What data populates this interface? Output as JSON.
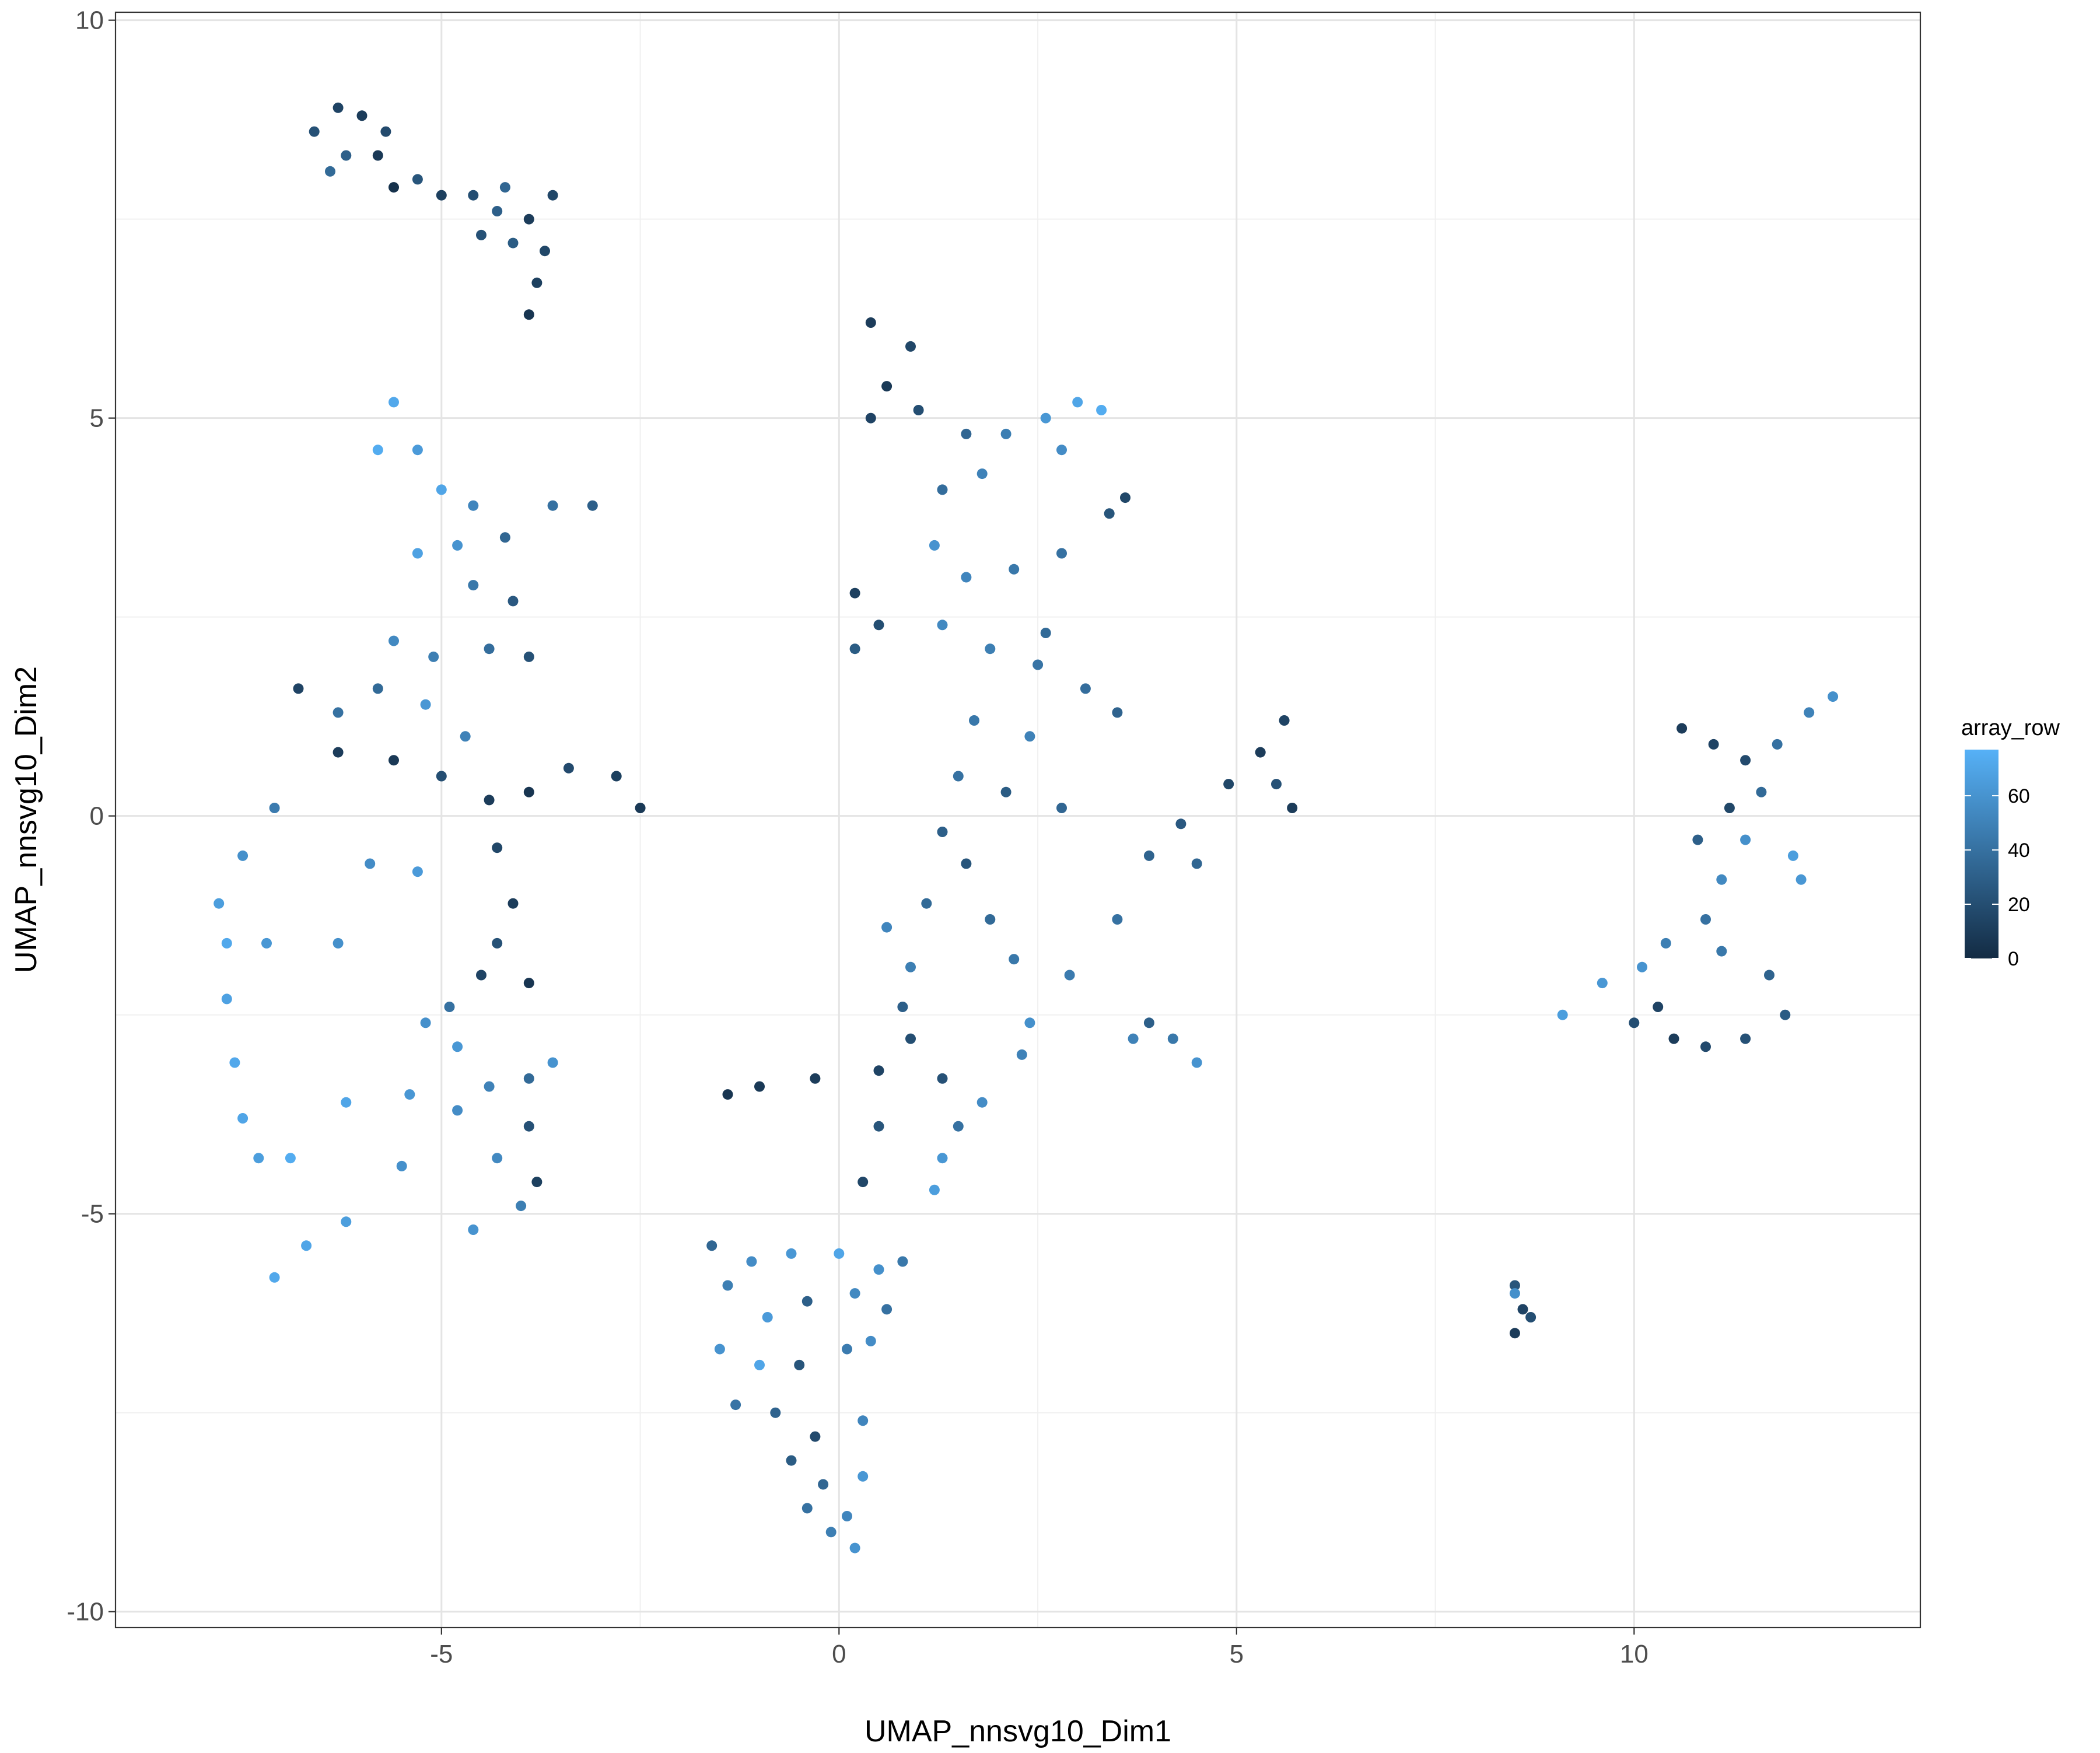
{
  "chart_data": {
    "type": "scatter",
    "title": "",
    "xlabel": "UMAP_nnsvg10_Dim1",
    "ylabel": "UMAP_nnsvg10_Dim2",
    "xlim": [
      -9.1,
      13.6
    ],
    "ylim": [
      -10.2,
      10.1
    ],
    "x_ticks": [
      -5,
      0,
      5,
      10
    ],
    "x_tick_labels": [
      "-5",
      "0",
      "5",
      "10"
    ],
    "y_ticks": [
      -10,
      -5,
      0,
      5,
      10
    ],
    "y_tick_labels": [
      "-10",
      "-5",
      "0",
      "5",
      "10"
    ],
    "grid": true,
    "legend": {
      "position": "right",
      "title": "array_row",
      "type": "colorbar",
      "range": [
        0,
        77
      ],
      "ticks": [
        0,
        20,
        40,
        60
      ],
      "tick_labels": [
        "0",
        "20",
        "40",
        "60"
      ],
      "low_color": "#132B43",
      "high_color": "#56B1F7"
    },
    "series": [
      {
        "color_by": "array_row",
        "points": [
          [
            -6.3,
            8.9,
            14
          ],
          [
            -6.6,
            8.6,
            22
          ],
          [
            -6.0,
            8.8,
            10
          ],
          [
            -5.7,
            8.6,
            18
          ],
          [
            -6.2,
            8.3,
            30
          ],
          [
            -5.8,
            8.3,
            8
          ],
          [
            -5.3,
            8.0,
            24
          ],
          [
            -5.0,
            7.8,
            12
          ],
          [
            -4.6,
            7.8,
            20
          ],
          [
            -4.3,
            7.6,
            30
          ],
          [
            -3.9,
            7.5,
            10
          ],
          [
            -4.2,
            7.9,
            34
          ],
          [
            -3.7,
            7.1,
            16
          ],
          [
            -4.1,
            7.2,
            28
          ],
          [
            -3.8,
            6.7,
            12
          ],
          [
            -3.9,
            6.3,
            6
          ],
          [
            -6.4,
            8.1,
            36
          ],
          [
            -5.6,
            7.9,
            4
          ],
          [
            -4.5,
            7.3,
            22
          ],
          [
            -3.6,
            7.8,
            16
          ],
          [
            -5.6,
            5.2,
            72
          ],
          [
            -5.3,
            4.6,
            64
          ],
          [
            -5.8,
            4.6,
            74
          ],
          [
            -5.0,
            4.1,
            70
          ],
          [
            -4.6,
            3.9,
            52
          ],
          [
            -4.2,
            3.5,
            34
          ],
          [
            -3.6,
            3.9,
            40
          ],
          [
            -3.1,
            3.9,
            30
          ],
          [
            -4.8,
            3.4,
            60
          ],
          [
            -5.3,
            3.3,
            68
          ],
          [
            -4.6,
            2.9,
            44
          ],
          [
            -4.1,
            2.7,
            26
          ],
          [
            -5.6,
            2.2,
            54
          ],
          [
            -5.1,
            2.0,
            48
          ],
          [
            -4.4,
            2.1,
            38
          ],
          [
            -3.9,
            2.0,
            22
          ],
          [
            -6.3,
            1.3,
            40
          ],
          [
            -5.8,
            1.6,
            36
          ],
          [
            -5.2,
            1.4,
            62
          ],
          [
            -4.7,
            1.0,
            50
          ],
          [
            -6.8,
            1.6,
            14
          ],
          [
            -6.3,
            0.8,
            10
          ],
          [
            -5.6,
            0.7,
            8
          ],
          [
            -5.0,
            0.5,
            20
          ],
          [
            -4.4,
            0.2,
            10
          ],
          [
            -3.9,
            0.3,
            6
          ],
          [
            -3.4,
            0.6,
            18
          ],
          [
            -2.8,
            0.5,
            12
          ],
          [
            -2.5,
            0.1,
            8
          ],
          [
            -4.3,
            -0.4,
            16
          ],
          [
            -4.1,
            -1.1,
            10
          ],
          [
            -4.3,
            -1.6,
            22
          ],
          [
            -3.9,
            -2.1,
            6
          ],
          [
            -4.5,
            -2.0,
            14
          ],
          [
            -7.1,
            0.1,
            46
          ],
          [
            -7.5,
            -0.5,
            58
          ],
          [
            -7.8,
            -1.1,
            66
          ],
          [
            -7.7,
            -1.6,
            72
          ],
          [
            -7.2,
            -1.6,
            62
          ],
          [
            -6.3,
            -1.6,
            58
          ],
          [
            -5.9,
            -0.6,
            56
          ],
          [
            -5.3,
            -0.7,
            64
          ],
          [
            -4.9,
            -2.4,
            40
          ],
          [
            -5.2,
            -2.6,
            58
          ],
          [
            -7.7,
            -2.3,
            68
          ],
          [
            -7.6,
            -3.1,
            72
          ],
          [
            -7.5,
            -3.8,
            70
          ],
          [
            -7.3,
            -4.3,
            66
          ],
          [
            -6.9,
            -4.3,
            74
          ],
          [
            -6.2,
            -3.6,
            70
          ],
          [
            -5.4,
            -3.5,
            62
          ],
          [
            -4.8,
            -3.7,
            56
          ],
          [
            -4.4,
            -3.4,
            50
          ],
          [
            -3.9,
            -3.3,
            36
          ],
          [
            -3.9,
            -3.9,
            22
          ],
          [
            -3.8,
            -4.6,
            12
          ],
          [
            -4.3,
            -4.3,
            54
          ],
          [
            -4.6,
            -5.2,
            60
          ],
          [
            -5.5,
            -4.4,
            58
          ],
          [
            -6.2,
            -5.1,
            66
          ],
          [
            -6.7,
            -5.4,
            70
          ],
          [
            -7.1,
            -5.8,
            72
          ],
          [
            -4.0,
            -4.9,
            48
          ],
          [
            -4.8,
            -2.9,
            62
          ],
          [
            -3.6,
            -3.1,
            60
          ],
          [
            0.4,
            6.2,
            10
          ],
          [
            0.9,
            5.9,
            16
          ],
          [
            0.6,
            5.4,
            8
          ],
          [
            0.4,
            5.0,
            14
          ],
          [
            1.0,
            5.1,
            20
          ],
          [
            1.6,
            4.8,
            34
          ],
          [
            2.1,
            4.8,
            48
          ],
          [
            2.6,
            5.0,
            62
          ],
          [
            3.0,
            5.2,
            70
          ],
          [
            3.3,
            5.1,
            74
          ],
          [
            2.8,
            4.6,
            56
          ],
          [
            1.8,
            4.3,
            50
          ],
          [
            1.3,
            4.1,
            38
          ],
          [
            1.2,
            3.4,
            60
          ],
          [
            1.6,
            3.0,
            52
          ],
          [
            2.2,
            3.1,
            44
          ],
          [
            2.8,
            3.3,
            40
          ],
          [
            3.4,
            3.8,
            24
          ],
          [
            3.6,
            4.0,
            16
          ],
          [
            2.6,
            2.3,
            36
          ],
          [
            0.2,
            2.8,
            12
          ],
          [
            0.5,
            2.4,
            20
          ],
          [
            0.2,
            2.1,
            28
          ],
          [
            1.3,
            2.4,
            54
          ],
          [
            1.9,
            2.1,
            48
          ],
          [
            2.5,
            1.9,
            42
          ],
          [
            3.1,
            1.6,
            38
          ],
          [
            3.5,
            1.3,
            32
          ],
          [
            1.7,
            1.2,
            44
          ],
          [
            2.4,
            1.0,
            50
          ],
          [
            1.5,
            0.5,
            40
          ],
          [
            2.1,
            0.3,
            28
          ],
          [
            2.8,
            0.1,
            34
          ],
          [
            1.3,
            -0.2,
            30
          ],
          [
            1.6,
            -0.6,
            24
          ],
          [
            1.1,
            -1.1,
            36
          ],
          [
            0.6,
            -1.4,
            52
          ],
          [
            0.9,
            -1.9,
            48
          ],
          [
            0.8,
            -2.4,
            30
          ],
          [
            0.9,
            -2.8,
            20
          ],
          [
            0.5,
            -3.2,
            14
          ],
          [
            -0.3,
            -3.3,
            10
          ],
          [
            -1.0,
            -3.4,
            8
          ],
          [
            -1.4,
            -3.5,
            6
          ],
          [
            1.3,
            -3.3,
            22
          ],
          [
            1.5,
            -3.9,
            40
          ],
          [
            1.3,
            -4.3,
            62
          ],
          [
            1.2,
            -4.7,
            66
          ],
          [
            1.8,
            -3.6,
            56
          ],
          [
            2.3,
            -3.0,
            50
          ],
          [
            2.9,
            -2.0,
            46
          ],
          [
            3.5,
            -1.3,
            40
          ],
          [
            3.9,
            -0.5,
            32
          ],
          [
            4.3,
            -0.1,
            26
          ],
          [
            4.9,
            0.4,
            16
          ],
          [
            5.3,
            0.8,
            10
          ],
          [
            5.6,
            1.2,
            14
          ],
          [
            5.5,
            0.4,
            22
          ],
          [
            5.7,
            0.1,
            10
          ],
          [
            4.5,
            -0.6,
            34
          ],
          [
            2.2,
            -1.8,
            44
          ],
          [
            1.9,
            -1.3,
            36
          ],
          [
            2.4,
            -2.6,
            58
          ],
          [
            0.5,
            -3.9,
            24
          ],
          [
            0.3,
            -4.6,
            16
          ],
          [
            -1.6,
            -5.4,
            34
          ],
          [
            -1.1,
            -5.6,
            56
          ],
          [
            -0.6,
            -5.5,
            62
          ],
          [
            0.0,
            -5.5,
            70
          ],
          [
            0.5,
            -5.7,
            58
          ],
          [
            0.8,
            -5.6,
            44
          ],
          [
            -1.4,
            -5.9,
            48
          ],
          [
            -0.9,
            -6.3,
            64
          ],
          [
            -0.4,
            -6.1,
            30
          ],
          [
            0.2,
            -6.0,
            54
          ],
          [
            0.6,
            -6.2,
            40
          ],
          [
            -1.5,
            -6.7,
            60
          ],
          [
            -1.0,
            -6.9,
            70
          ],
          [
            -0.5,
            -6.9,
            24
          ],
          [
            0.1,
            -6.7,
            46
          ],
          [
            0.4,
            -6.6,
            56
          ],
          [
            -1.3,
            -7.4,
            42
          ],
          [
            -0.8,
            -7.5,
            32
          ],
          [
            -0.3,
            -7.8,
            18
          ],
          [
            0.3,
            -7.6,
            52
          ],
          [
            -0.6,
            -8.1,
            28
          ],
          [
            -0.2,
            -8.4,
            34
          ],
          [
            0.3,
            -8.3,
            62
          ],
          [
            0.1,
            -8.8,
            52
          ],
          [
            -0.1,
            -9.0,
            48
          ],
          [
            0.2,
            -9.2,
            60
          ],
          [
            -0.4,
            -8.7,
            40
          ],
          [
            10.6,
            1.1,
            10
          ],
          [
            11.0,
            0.9,
            14
          ],
          [
            11.4,
            0.7,
            18
          ],
          [
            11.8,
            0.9,
            40
          ],
          [
            12.2,
            1.3,
            50
          ],
          [
            12.5,
            1.5,
            58
          ],
          [
            11.6,
            0.3,
            36
          ],
          [
            11.2,
            0.1,
            16
          ],
          [
            10.8,
            -0.3,
            30
          ],
          [
            11.4,
            -0.3,
            58
          ],
          [
            12.0,
            -0.5,
            66
          ],
          [
            12.1,
            -0.8,
            62
          ],
          [
            11.1,
            -0.8,
            54
          ],
          [
            10.9,
            -1.3,
            40
          ],
          [
            10.4,
            -1.6,
            48
          ],
          [
            10.1,
            -1.9,
            60
          ],
          [
            9.6,
            -2.1,
            62
          ],
          [
            9.1,
            -2.5,
            66
          ],
          [
            10.3,
            -2.4,
            14
          ],
          [
            10.5,
            -2.8,
            10
          ],
          [
            10.9,
            -2.9,
            18
          ],
          [
            11.4,
            -2.8,
            22
          ],
          [
            11.9,
            -2.5,
            28
          ],
          [
            11.7,
            -2.0,
            32
          ],
          [
            10.0,
            -2.6,
            20
          ],
          [
            11.1,
            -1.7,
            44
          ],
          [
            8.5,
            -5.9,
            24
          ],
          [
            8.6,
            -6.2,
            14
          ],
          [
            8.5,
            -6.5,
            10
          ],
          [
            8.7,
            -6.3,
            20
          ],
          [
            8.5,
            -6.0,
            58
          ],
          [
            3.9,
            -2.6,
            30
          ],
          [
            4.2,
            -2.8,
            44
          ],
          [
            4.5,
            -3.1,
            60
          ],
          [
            3.7,
            -2.8,
            50
          ]
        ]
      }
    ]
  }
}
